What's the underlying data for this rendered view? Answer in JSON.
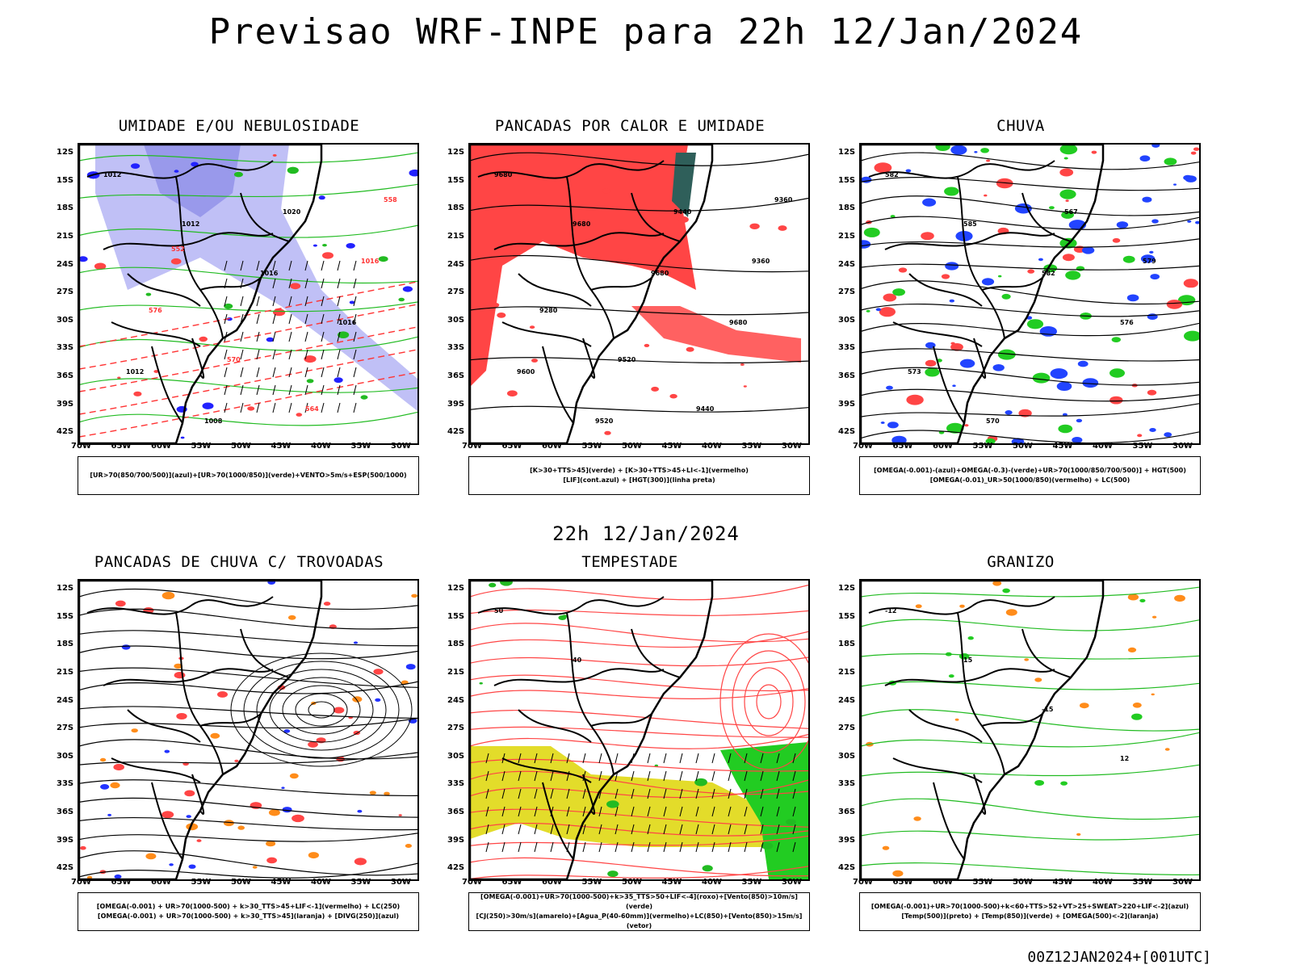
{
  "main_title": "Previsao WRF-INPE  para 22h 12/Jan/2024",
  "mid_title": "22h 12/Jan/2024",
  "footer": "00Z12JAN2024+[001UTC]",
  "lat_ticks": [
    "12S",
    "15S",
    "18S",
    "21S",
    "24S",
    "27S",
    "30S",
    "33S",
    "36S",
    "39S",
    "42S"
  ],
  "lon_ticks": [
    "70W",
    "65W",
    "60W",
    "55W",
    "50W",
    "45W",
    "40W",
    "35W",
    "30W"
  ],
  "panels": [
    {
      "title": "UMIDADE E/OU NEBULOSIDADE",
      "legend": [
        "[UR>70(850/700/500)](azul)+[UR>70(1000/850)](verde)+VENTO>5m/s+ESP(500/1000)"
      ],
      "contour_labels": [
        "1012",
        "1012",
        "1016",
        "1016",
        "1012",
        "1008",
        "1020",
        "1016",
        "576",
        "570",
        "564",
        "558",
        "552"
      ]
    },
    {
      "title": "PANCADAS POR CALOR E UMIDADE",
      "legend": [
        "[K>30+TTS>45](verde) + [K>30+TTS>45+LI<-1](vermelho)",
        "[LIF](cont.azul) + [HGT(300)](linha preta)"
      ],
      "contour_labels": [
        "9680",
        "9680",
        "9680",
        "9680",
        "9600",
        "9520",
        "9440",
        "9360",
        "9280",
        "9520",
        "9440",
        "9360"
      ]
    },
    {
      "title": "CHUVA",
      "legend": [
        "[OMEGA(-0.001)-(azul)+OMEGA(-0.3)-(verde)+UR>70(1000/850/700/500)] + HGT(500)",
        "[OMEGA(-0.01)_UR>50(1000/850)(vermelho) + LC(500)"
      ],
      "contour_labels": [
        "582",
        "585",
        "582",
        "576",
        "573",
        "570",
        "567",
        "579"
      ]
    },
    {
      "title": "PANCADAS DE CHUVA C/ TROVOADAS",
      "legend": [
        "[OMEGA(-0.001) + UR>70(1000-500) + k>30_TTS>45+LIF<-1](vermelho) + LC(250)",
        "[OMEGA(-0.001) + UR>70(1000-500) + k>30_TTS>45](laranja) + [DIVG(250)](azul)"
      ],
      "contour_labels": []
    },
    {
      "title": "TEMPESTADE",
      "legend": [
        "[OMEGA(-0.001)+UR>70(1000-500)+k>35_TTS>50+LIF<-4](roxo)+[Vento(850)>10m/s](verde)",
        "[CJ(250)>30m/s](amarelo)+[Agua_P(40-60mm)](vermelho)+LC(850)+[Vento(850)>15m/s](vetor)"
      ],
      "contour_labels": [
        "50",
        "40"
      ]
    },
    {
      "title": "GRANIZO",
      "legend": [
        "[OMEGA(-0.001)+UR>70(1000-500)+k<60+TTS>52+VT>25+SWEAT>220+LIF<-2](azul)",
        "[Temp(500)](preto) + [Temp(850)](verde) + [OMEGA(500)<-2](laranja)"
      ],
      "contour_labels": [
        "-12",
        "15",
        "-15",
        "12"
      ]
    }
  ]
}
